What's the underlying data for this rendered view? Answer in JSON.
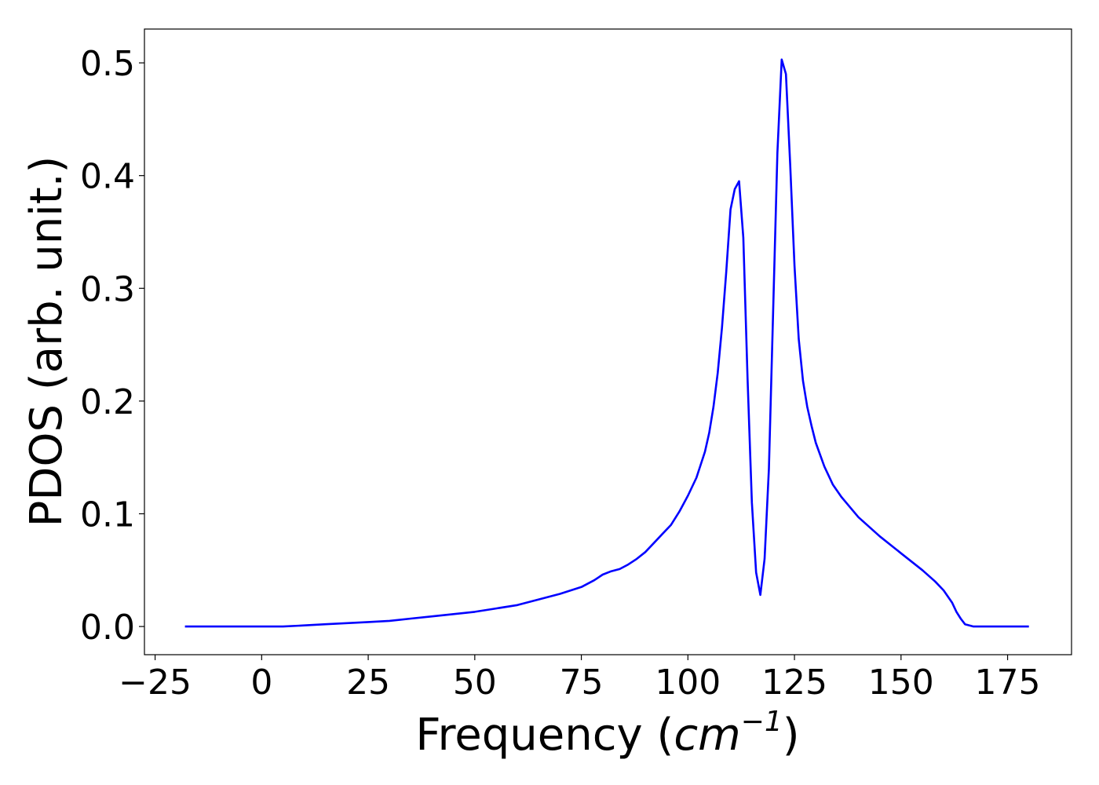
{
  "chart_data": {
    "type": "line",
    "xlabel_prefix": "Frequency (",
    "xlabel_unit": "cm",
    "xlabel_exp": "−1",
    "xlabel_suffix": ")",
    "ylabel": "PDOS (arb. unit.)",
    "xlim": [
      -27.5,
      190
    ],
    "ylim": [
      -0.025,
      0.53
    ],
    "xticks": [
      -25,
      0,
      25,
      50,
      75,
      100,
      125,
      150,
      175
    ],
    "xtick_labels": [
      "−25",
      "0",
      "25",
      "50",
      "75",
      "100",
      "125",
      "150",
      "175"
    ],
    "yticks": [
      0.0,
      0.1,
      0.2,
      0.3,
      0.4,
      0.5
    ],
    "ytick_labels": [
      "0.0",
      "0.1",
      "0.2",
      "0.3",
      "0.4",
      "0.5"
    ],
    "grid": false,
    "series": [
      {
        "color": "#0000ff",
        "x": [
          -18,
          -10,
          0,
          5,
          10,
          15,
          20,
          25,
          30,
          35,
          40,
          45,
          50,
          55,
          60,
          65,
          70,
          75,
          78,
          80,
          82,
          84,
          86,
          88,
          90,
          92,
          94,
          96,
          98,
          100,
          102,
          104,
          105,
          106,
          107,
          108,
          109,
          110,
          111,
          112,
          113,
          114,
          115,
          116,
          117,
          118,
          119,
          120,
          121,
          122,
          123,
          124,
          125,
          126,
          127,
          128,
          129,
          130,
          132,
          134,
          136,
          140,
          145,
          150,
          155,
          158,
          160,
          162,
          163,
          164,
          165,
          167,
          170,
          175,
          180
        ],
        "y": [
          0.0,
          0.0,
          0.0,
          0.0,
          0.001,
          0.002,
          0.003,
          0.004,
          0.005,
          0.007,
          0.009,
          0.011,
          0.013,
          0.016,
          0.019,
          0.024,
          0.029,
          0.035,
          0.041,
          0.046,
          0.049,
          0.051,
          0.055,
          0.06,
          0.066,
          0.074,
          0.082,
          0.09,
          0.102,
          0.116,
          0.132,
          0.155,
          0.172,
          0.195,
          0.225,
          0.265,
          0.315,
          0.37,
          0.388,
          0.395,
          0.345,
          0.22,
          0.11,
          0.048,
          0.028,
          0.06,
          0.14,
          0.28,
          0.42,
          0.503,
          0.49,
          0.41,
          0.32,
          0.255,
          0.218,
          0.195,
          0.178,
          0.163,
          0.142,
          0.126,
          0.115,
          0.097,
          0.08,
          0.065,
          0.05,
          0.04,
          0.032,
          0.021,
          0.013,
          0.007,
          0.002,
          0.0,
          0.0,
          0.0,
          0.0
        ]
      }
    ]
  }
}
